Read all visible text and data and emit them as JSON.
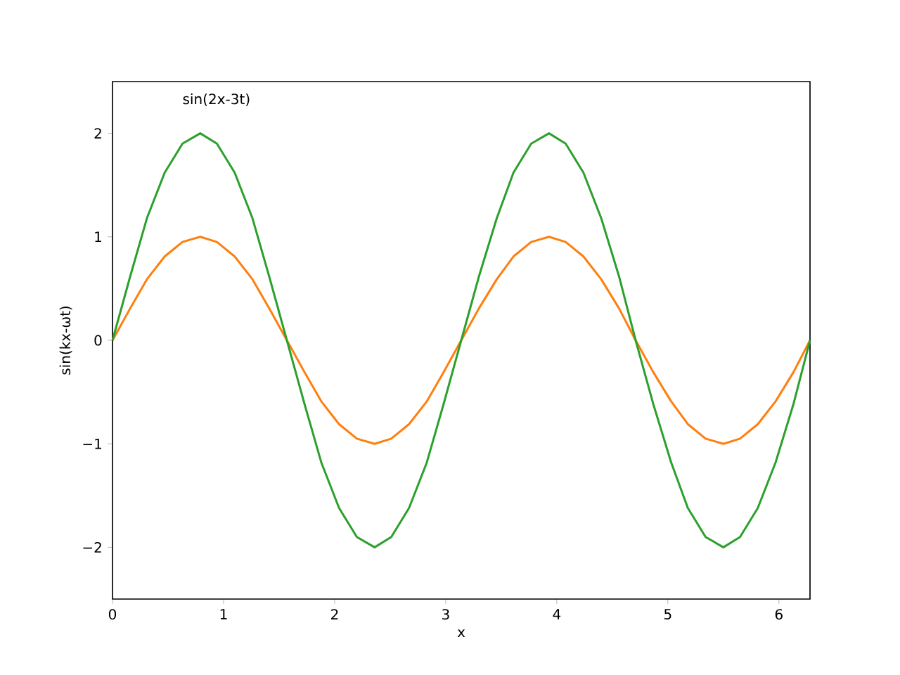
{
  "chart_data": {
    "type": "line",
    "xlabel": "x",
    "ylabel": "sin(kx-ωt)",
    "annotations": [
      "sin(2x-3t)"
    ],
    "x": [
      0,
      0.16,
      0.31,
      0.47,
      0.63,
      0.79,
      0.94,
      1.1,
      1.26,
      1.41,
      1.57,
      1.73,
      1.88,
      2.04,
      2.2,
      2.36,
      2.51,
      2.67,
      2.83,
      2.98,
      3.14,
      3.3,
      3.46,
      3.61,
      3.77,
      3.93,
      4.08,
      4.24,
      4.4,
      4.56,
      4.71,
      4.87,
      5.03,
      5.18,
      5.34,
      5.5,
      5.65,
      5.81,
      5.97,
      6.13,
      6.28
    ],
    "series": [
      {
        "color": "#ff7f0e",
        "values": [
          0,
          0.31,
          0.59,
          0.81,
          0.95,
          1,
          0.95,
          0.81,
          0.59,
          0.31,
          0,
          -0.31,
          -0.59,
          -0.81,
          -0.95,
          -1,
          -0.95,
          -0.81,
          -0.59,
          -0.31,
          0,
          0.31,
          0.59,
          0.81,
          0.95,
          1,
          0.95,
          0.81,
          0.59,
          0.31,
          0,
          -0.31,
          -0.59,
          -0.81,
          -0.95,
          -1,
          -0.95,
          -0.81,
          -0.59,
          -0.31,
          0
        ]
      },
      {
        "color": "#2ca02c",
        "values": [
          0,
          0.62,
          1.18,
          1.62,
          1.9,
          2,
          1.9,
          1.62,
          1.18,
          0.62,
          0,
          -0.62,
          -1.18,
          -1.62,
          -1.9,
          -2,
          -1.9,
          -1.62,
          -1.18,
          -0.62,
          0,
          0.62,
          1.18,
          1.62,
          1.9,
          2,
          1.9,
          1.62,
          1.18,
          0.62,
          0,
          -0.62,
          -1.18,
          -1.62,
          -1.9,
          -2,
          -1.9,
          -1.62,
          -1.18,
          -0.62,
          0
        ]
      }
    ],
    "xlim": [
      0,
      6.28
    ],
    "ylim": [
      -2.5,
      2.5
    ],
    "xticks": [
      0,
      1,
      2,
      3,
      4,
      5,
      6
    ],
    "yticks": [
      {
        "value": -2,
        "label": "−2"
      },
      {
        "value": -1,
        "label": "−1"
      },
      0,
      1,
      2
    ],
    "marker": "none",
    "line_style": "solid"
  }
}
